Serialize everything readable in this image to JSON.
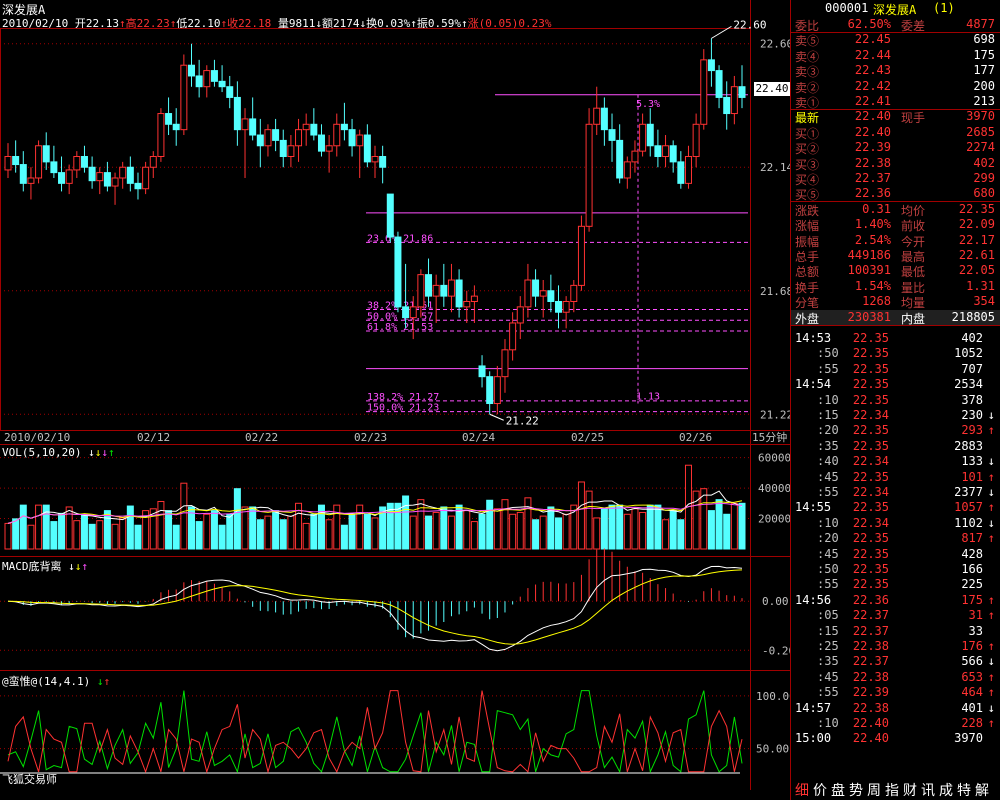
{
  "title": "深发展A",
  "header": {
    "date": "2010/02/10",
    "open_label": "开",
    "open": "22.13",
    "high_label": "高",
    "high": "22.23",
    "low_label": "低",
    "low": "22.10",
    "close_label": "收",
    "close": "22.18",
    "vol_label": "量",
    "vol": "9811",
    "amt_label": "额",
    "amt": "2174",
    "turn_label": "换",
    "turn": "0.03%",
    "amp_label": "振",
    "amp": "0.59%",
    "chg_label": "涨",
    "chg": "(0.05)",
    "chg_pct": "0.23%"
  },
  "price_axis": {
    "ticks": [
      "22.60",
      "22.14",
      "21.68",
      "21.22"
    ],
    "current": "22.40"
  },
  "annotations": {
    "high_mark": "22.60",
    "low_mark": "21.22",
    "pct_53": "5.3%",
    "pct_113": "1.13",
    "fib": [
      {
        "pct": "23.6%",
        "val": "21.86"
      },
      {
        "pct": "38.2%",
        "val": "21.61"
      },
      {
        "pct": "50.0%",
        "val": "21.57"
      },
      {
        "pct": "61.8%",
        "val": "21.53"
      },
      {
        "pct": "138.2%",
        "val": "21.27"
      },
      {
        "pct": "150.0%",
        "val": "21.23"
      }
    ]
  },
  "date_axis": {
    "labels": [
      "2010/02/10",
      "02/12",
      "02/22",
      "02/23",
      "02/24",
      "02/25",
      "02/26"
    ],
    "period": "15分钟"
  },
  "vol_panel": {
    "title": "VOL(5,10,20)",
    "ticks": [
      "60000",
      "40000",
      "20000"
    ]
  },
  "macd_panel": {
    "title": "MACD底背离",
    "ticks": [
      "0.00",
      "-0.20"
    ]
  },
  "ind_panel": {
    "title": "@蛮惟@(14,4.1)",
    "ticks": [
      "100.00",
      "50.00"
    ],
    "footer": "飞狐交易师"
  },
  "colors": {
    "up": "#ff3232",
    "down": "#54ffff",
    "bg": "#000000",
    "grid": "#a00000",
    "fib": "#ff50ff"
  },
  "chart_data": {
    "type": "candlestick",
    "title": "深发展A",
    "ylim": [
      21.18,
      22.64
    ],
    "candles": [
      [
        22.13,
        22.23,
        22.1,
        22.18
      ],
      [
        22.18,
        22.24,
        22.12,
        22.15
      ],
      [
        22.15,
        22.2,
        22.05,
        22.08
      ],
      [
        22.08,
        22.14,
        22.02,
        22.1
      ],
      [
        22.1,
        22.24,
        22.08,
        22.22
      ],
      [
        22.22,
        22.27,
        22.13,
        22.16
      ],
      [
        22.16,
        22.22,
        22.1,
        22.12
      ],
      [
        22.12,
        22.18,
        22.05,
        22.08
      ],
      [
        22.08,
        22.15,
        22.04,
        22.13
      ],
      [
        22.13,
        22.2,
        22.1,
        22.18
      ],
      [
        22.18,
        22.22,
        22.12,
        22.14
      ],
      [
        22.14,
        22.18,
        22.06,
        22.09
      ],
      [
        22.09,
        22.14,
        22.04,
        22.12
      ],
      [
        22.12,
        22.16,
        22.05,
        22.07
      ],
      [
        22.07,
        22.12,
        22.0,
        22.1
      ],
      [
        22.1,
        22.16,
        22.06,
        22.14
      ],
      [
        22.14,
        22.18,
        22.05,
        22.08
      ],
      [
        22.08,
        22.12,
        22.02,
        22.06
      ],
      [
        22.06,
        22.16,
        22.04,
        22.14
      ],
      [
        22.14,
        22.2,
        22.1,
        22.18
      ],
      [
        22.18,
        22.36,
        22.16,
        22.34
      ],
      [
        22.34,
        22.4,
        22.26,
        22.3
      ],
      [
        22.3,
        22.36,
        22.22,
        22.28
      ],
      [
        22.28,
        22.56,
        22.26,
        22.52
      ],
      [
        22.52,
        22.6,
        22.44,
        22.48
      ],
      [
        22.48,
        22.54,
        22.4,
        22.44
      ],
      [
        22.44,
        22.52,
        22.4,
        22.5
      ],
      [
        22.5,
        22.54,
        22.44,
        22.46
      ],
      [
        22.46,
        22.52,
        22.42,
        22.44
      ],
      [
        22.44,
        22.48,
        22.36,
        22.4
      ],
      [
        22.4,
        22.46,
        22.22,
        22.28
      ],
      [
        22.28,
        22.36,
        22.1,
        22.32
      ],
      [
        22.32,
        22.4,
        22.24,
        22.26
      ],
      [
        22.26,
        22.32,
        22.14,
        22.22
      ],
      [
        22.22,
        22.3,
        22.18,
        22.28
      ],
      [
        22.28,
        22.32,
        22.2,
        22.24
      ],
      [
        22.24,
        22.28,
        22.14,
        22.18
      ],
      [
        22.18,
        22.26,
        22.14,
        22.22
      ],
      [
        22.22,
        22.32,
        22.16,
        22.28
      ],
      [
        22.28,
        22.34,
        22.22,
        22.3
      ],
      [
        22.3,
        22.36,
        22.24,
        22.26
      ],
      [
        22.26,
        22.3,
        22.18,
        22.2
      ],
      [
        22.2,
        22.26,
        22.12,
        22.22
      ],
      [
        22.22,
        22.34,
        22.18,
        22.3
      ],
      [
        22.3,
        22.38,
        22.24,
        22.28
      ],
      [
        22.28,
        22.32,
        22.18,
        22.22
      ],
      [
        22.22,
        22.28,
        22.1,
        22.26
      ],
      [
        22.26,
        22.3,
        22.14,
        22.16
      ],
      [
        22.16,
        22.22,
        22.1,
        22.18
      ],
      [
        22.18,
        22.22,
        22.08,
        22.14
      ],
      [
        22.04,
        22.04,
        21.86,
        21.88
      ],
      [
        21.88,
        21.9,
        21.6,
        21.62
      ],
      [
        21.62,
        21.78,
        21.54,
        21.58
      ],
      [
        21.58,
        21.66,
        21.5,
        21.62
      ],
      [
        21.62,
        21.76,
        21.58,
        21.74
      ],
      [
        21.74,
        21.8,
        21.62,
        21.66
      ],
      [
        21.66,
        21.74,
        21.56,
        21.7
      ],
      [
        21.7,
        21.78,
        21.62,
        21.66
      ],
      [
        21.66,
        21.78,
        21.6,
        21.72
      ],
      [
        21.72,
        21.76,
        21.58,
        21.62
      ],
      [
        21.62,
        21.68,
        21.56,
        21.64
      ],
      [
        21.64,
        21.7,
        21.56,
        21.66
      ],
      [
        21.4,
        21.44,
        21.32,
        21.36
      ],
      [
        21.36,
        21.38,
        21.22,
        21.26
      ],
      [
        21.26,
        21.4,
        21.22,
        21.36
      ],
      [
        21.36,
        21.5,
        21.3,
        21.46
      ],
      [
        21.46,
        21.6,
        21.42,
        21.56
      ],
      [
        21.56,
        21.66,
        21.5,
        21.62
      ],
      [
        21.62,
        21.78,
        21.58,
        21.72
      ],
      [
        21.72,
        21.76,
        21.62,
        21.66
      ],
      [
        21.66,
        21.72,
        21.58,
        21.68
      ],
      [
        21.68,
        21.74,
        21.6,
        21.64
      ],
      [
        21.64,
        21.7,
        21.54,
        21.6
      ],
      [
        21.6,
        21.66,
        21.54,
        21.64
      ],
      [
        21.64,
        21.72,
        21.6,
        21.7
      ],
      [
        21.7,
        21.96,
        21.68,
        21.92
      ],
      [
        21.92,
        22.36,
        21.9,
        22.3
      ],
      [
        22.3,
        22.44,
        22.26,
        22.36
      ],
      [
        22.36,
        22.4,
        22.22,
        22.28
      ],
      [
        22.28,
        22.34,
        22.16,
        22.24
      ],
      [
        22.24,
        22.3,
        22.08,
        22.1
      ],
      [
        22.1,
        22.18,
        22.06,
        22.16
      ],
      [
        22.16,
        22.24,
        22.12,
        22.2
      ],
      [
        22.2,
        22.34,
        22.18,
        22.3
      ],
      [
        22.3,
        22.36,
        22.18,
        22.22
      ],
      [
        22.22,
        22.28,
        22.14,
        22.18
      ],
      [
        22.18,
        22.26,
        22.14,
        22.22
      ],
      [
        22.22,
        22.24,
        22.12,
        22.16
      ],
      [
        22.16,
        22.2,
        22.06,
        22.08
      ],
      [
        22.08,
        22.22,
        22.06,
        22.18
      ],
      [
        22.18,
        22.34,
        22.14,
        22.3
      ],
      [
        22.3,
        22.58,
        22.28,
        22.54
      ],
      [
        22.54,
        22.62,
        22.44,
        22.5
      ],
      [
        22.5,
        22.52,
        22.36,
        22.4
      ],
      [
        22.4,
        22.46,
        22.28,
        22.34
      ],
      [
        22.34,
        22.48,
        22.3,
        22.44
      ],
      [
        22.44,
        22.52,
        22.36,
        22.4
      ]
    ],
    "volume_ylim": [
      0,
      65000
    ],
    "macd_ylim": [
      -0.26,
      0.16
    ],
    "ind_ylim": [
      25,
      115
    ]
  },
  "order_book": {
    "code": "000001",
    "name": "深发展A",
    "num": "(1)",
    "weibi_label": "委比",
    "weibi": "62.50%",
    "weicha_label": "委差",
    "weicha": "4877",
    "asks": [
      {
        "label": "卖⑤",
        "price": "22.45",
        "vol": "698"
      },
      {
        "label": "卖④",
        "price": "22.44",
        "vol": "175"
      },
      {
        "label": "卖③",
        "price": "22.43",
        "vol": "177"
      },
      {
        "label": "卖②",
        "price": "22.42",
        "vol": "200"
      },
      {
        "label": "卖①",
        "price": "22.41",
        "vol": "213"
      }
    ],
    "latest_label": "最新",
    "latest": "22.40",
    "xianshou_label": "现手",
    "xianshou": "3970",
    "bids": [
      {
        "label": "买①",
        "price": "22.40",
        "vol": "2685"
      },
      {
        "label": "买②",
        "price": "22.39",
        "vol": "2274"
      },
      {
        "label": "买③",
        "price": "22.38",
        "vol": "402"
      },
      {
        "label": "买④",
        "price": "22.37",
        "vol": "299"
      },
      {
        "label": "买⑤",
        "price": "22.36",
        "vol": "680"
      }
    ],
    "stats": [
      {
        "l1": "涨跌",
        "v1": "0.31",
        "l2": "均价",
        "v2": "22.35"
      },
      {
        "l1": "涨幅",
        "v1": "1.40%",
        "l2": "前收",
        "v2": "22.09"
      },
      {
        "l1": "振幅",
        "v1": "2.54%",
        "l2": "今开",
        "v2": "22.17"
      },
      {
        "l1": "总手",
        "v1": "449186",
        "l2": "最高",
        "v2": "22.61"
      },
      {
        "l1": "总额",
        "v1": "100391",
        "l2": "最低",
        "v2": "22.05"
      },
      {
        "l1": "换手",
        "v1": "1.54%",
        "l2": "量比",
        "v2": "1.31"
      },
      {
        "l1": "分笔",
        "v1": "1268",
        "l2": "均量",
        "v2": "354"
      }
    ],
    "waipan_label": "外盘",
    "waipan": "230381",
    "neipan_label": "内盘",
    "neipan": "218805"
  },
  "ticks": [
    {
      "t": "14:53",
      "p": "22.35",
      "v": "402",
      "a": ""
    },
    {
      "t": ":50",
      "p": "22.35",
      "v": "1052",
      "a": ""
    },
    {
      "t": ":55",
      "p": "22.35",
      "v": "707",
      "a": ""
    },
    {
      "t": "14:54",
      "p": "22.35",
      "v": "2534",
      "a": ""
    },
    {
      "t": ":10",
      "p": "22.35",
      "v": "378",
      "a": ""
    },
    {
      "t": ":15",
      "p": "22.34",
      "v": "230",
      "a": "down"
    },
    {
      "t": ":20",
      "p": "22.35",
      "v": "293",
      "a": "up"
    },
    {
      "t": ":35",
      "p": "22.35",
      "v": "2883",
      "a": ""
    },
    {
      "t": ":40",
      "p": "22.34",
      "v": "133",
      "a": "down"
    },
    {
      "t": ":45",
      "p": "22.35",
      "v": "101",
      "a": "up"
    },
    {
      "t": ":55",
      "p": "22.34",
      "v": "2377",
      "a": "down"
    },
    {
      "t": "14:55",
      "p": "22.35",
      "v": "1057",
      "a": "up"
    },
    {
      "t": ":10",
      "p": "22.34",
      "v": "1102",
      "a": "down"
    },
    {
      "t": ":20",
      "p": "22.35",
      "v": "817",
      "a": "up"
    },
    {
      "t": ":45",
      "p": "22.35",
      "v": "428",
      "a": ""
    },
    {
      "t": ":50",
      "p": "22.35",
      "v": "166",
      "a": ""
    },
    {
      "t": ":55",
      "p": "22.35",
      "v": "225",
      "a": ""
    },
    {
      "t": "14:56",
      "p": "22.36",
      "v": "175",
      "a": "up"
    },
    {
      "t": ":05",
      "p": "22.37",
      "v": "31",
      "a": "up"
    },
    {
      "t": ":15",
      "p": "22.37",
      "v": "33",
      "a": ""
    },
    {
      "t": ":25",
      "p": "22.38",
      "v": "176",
      "a": "up"
    },
    {
      "t": ":35",
      "p": "22.37",
      "v": "566",
      "a": "down"
    },
    {
      "t": ":45",
      "p": "22.38",
      "v": "653",
      "a": "up"
    },
    {
      "t": ":55",
      "p": "22.39",
      "v": "464",
      "a": "up"
    },
    {
      "t": "14:57",
      "p": "22.38",
      "v": "401",
      "a": "down"
    },
    {
      "t": ":10",
      "p": "22.40",
      "v": "228",
      "a": "up"
    },
    {
      "t": "15:00",
      "p": "22.40",
      "v": "3970",
      "a": ""
    }
  ],
  "tabs": [
    "细",
    "价",
    "盘",
    "势",
    "周",
    "指",
    "财",
    "讯",
    "成",
    "特",
    "解"
  ]
}
